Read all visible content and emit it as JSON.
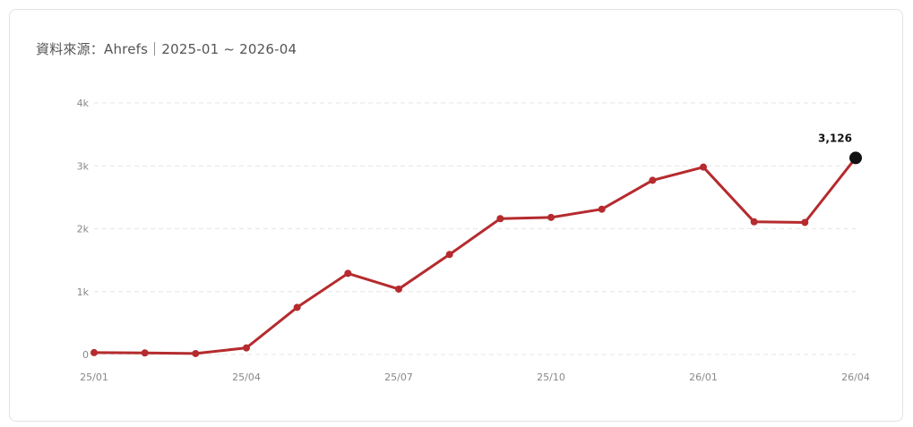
{
  "header": {
    "source_text": "資料來源：Ahrefs｜2025-01 ~ 2026-04"
  },
  "chart_data": {
    "type": "line",
    "title": "",
    "xlabel": "",
    "ylabel": "",
    "x": [
      "25/01",
      "25/02",
      "25/03",
      "25/04",
      "25/05",
      "25/06",
      "25/07",
      "25/08",
      "25/09",
      "25/10",
      "25/11",
      "25/12",
      "26/01",
      "26/02",
      "26/03",
      "26/04"
    ],
    "x_tick_labels": [
      "25/01",
      "25/04",
      "25/07",
      "25/10",
      "26/01",
      "26/04"
    ],
    "y_ticks": [
      0,
      1000,
      2000,
      3000,
      4000
    ],
    "y_tick_labels": [
      "0",
      "1k",
      "2k",
      "3k",
      "4k"
    ],
    "ylim": [
      0,
      4000
    ],
    "grid": true,
    "series": [
      {
        "values": [
          30,
          25,
          15,
          105,
          750,
          1290,
          1040,
          1590,
          2160,
          2180,
          2310,
          2770,
          2980,
          2110,
          2100,
          3126
        ],
        "color": "#b52b2e"
      }
    ],
    "annotations": [
      {
        "index": 15,
        "label": "3,126",
        "marker_color": "#111111"
      }
    ]
  }
}
